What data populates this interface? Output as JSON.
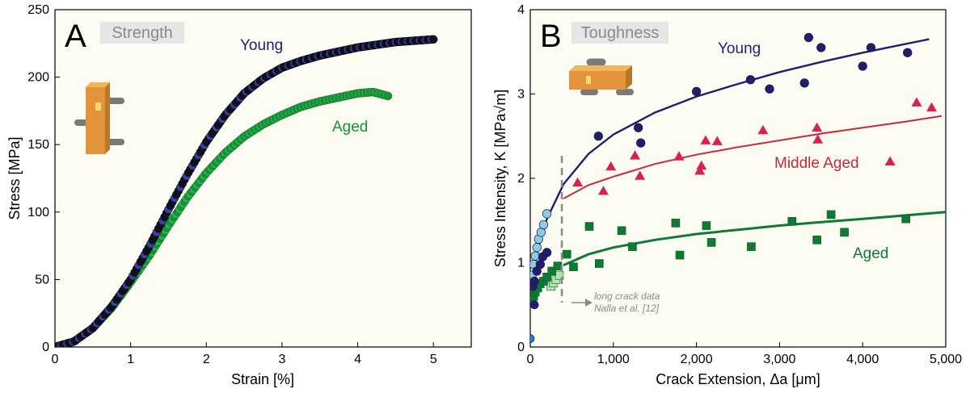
{
  "chart_data": [
    {
      "panel": "A",
      "title": "Strength",
      "type": "scatter",
      "xlabel": "Strain [%]",
      "ylabel": "Stress [MPa]",
      "xlim": [
        0,
        5.5
      ],
      "ylim": [
        0,
        250
      ],
      "xticks": [
        "0",
        "1",
        "2",
        "3",
        "4",
        "5"
      ],
      "xtick_values": [
        0,
        1,
        2,
        3,
        4,
        5
      ],
      "yticks": [
        "0",
        "50",
        "100",
        "150",
        "200",
        "250"
      ],
      "ytick_values": [
        0,
        50,
        100,
        150,
        200,
        250
      ],
      "grid": false,
      "series": [
        {
          "name": "Young",
          "color": "#1f1f6e",
          "points": [
            [
              0,
              0
            ],
            [
              0.25,
              4
            ],
            [
              0.5,
              14
            ],
            [
              0.75,
              30
            ],
            [
              1.0,
              50
            ],
            [
              1.25,
              75
            ],
            [
              1.5,
              102
            ],
            [
              1.75,
              128
            ],
            [
              2.0,
              152
            ],
            [
              2.25,
              172
            ],
            [
              2.5,
              188
            ],
            [
              2.75,
              199
            ],
            [
              3.0,
              207
            ],
            [
              3.25,
              212
            ],
            [
              3.5,
              216
            ],
            [
              3.75,
              219
            ],
            [
              4.0,
              222
            ],
            [
              4.25,
              224
            ],
            [
              4.5,
              226
            ],
            [
              4.75,
              227
            ],
            [
              5.0,
              228
            ]
          ]
        },
        {
          "name": "Aged",
          "color": "#139436",
          "points": [
            [
              0,
              0
            ],
            [
              0.25,
              4
            ],
            [
              0.5,
              14
            ],
            [
              0.75,
              29
            ],
            [
              1.0,
              48
            ],
            [
              1.25,
              68
            ],
            [
              1.5,
              90
            ],
            [
              1.75,
              111
            ],
            [
              2.0,
              129
            ],
            [
              2.25,
              144
            ],
            [
              2.5,
              156
            ],
            [
              2.75,
              165
            ],
            [
              3.0,
              172
            ],
            [
              3.25,
              178
            ],
            [
              3.5,
              182
            ],
            [
              3.75,
              185
            ],
            [
              4.0,
              188
            ],
            [
              4.2,
              189
            ],
            [
              4.4,
              186
            ]
          ]
        }
      ]
    },
    {
      "panel": "B",
      "title": "Toughness",
      "type": "scatter",
      "xlabel": "Crack Extension, Δa [μm]",
      "ylabel": "Stress Intensity, K [MPa√m]",
      "xlim": [
        0,
        5000
      ],
      "ylim": [
        0,
        4
      ],
      "xticks": [
        "0",
        "1,000",
        "2,000",
        "3,000",
        "4,000",
        "5,000"
      ],
      "xtick_values": [
        0,
        1000,
        2000,
        3000,
        4000,
        5000
      ],
      "yticks": [
        "0",
        "1",
        "2",
        "3",
        "4"
      ],
      "ytick_values": [
        0,
        1,
        2,
        3,
        4
      ],
      "grid": false,
      "annotation": {
        "text_line1": "long crack data",
        "text_line2": "Nalla et al. [12]",
        "x": 380
      },
      "series": [
        {
          "name": "Young",
          "color": "#1f1f6e",
          "marker": "circle",
          "fit_points": [
            [
              20,
              0.82
            ],
            [
              100,
              1.19
            ],
            [
              200,
              1.52
            ],
            [
              400,
              1.93
            ],
            [
              700,
              2.29
            ],
            [
              1000,
              2.52
            ],
            [
              1500,
              2.78
            ],
            [
              2000,
              2.97
            ],
            [
              2500,
              3.12
            ],
            [
              3000,
              3.26
            ],
            [
              3500,
              3.38
            ],
            [
              4000,
              3.49
            ],
            [
              4500,
              3.59
            ],
            [
              4800,
              3.65
            ]
          ],
          "points": [
            [
              30,
              0.72
            ],
            [
              50,
              0.78
            ],
            [
              80,
              0.9
            ],
            [
              120,
              0.98
            ],
            [
              150,
              1.07
            ],
            [
              200,
              1.12
            ],
            [
              820,
              2.5
            ],
            [
              1300,
              2.6
            ],
            [
              1330,
              2.42
            ],
            [
              2000,
              3.03
            ],
            [
              2650,
              3.17
            ],
            [
              2880,
              3.06
            ],
            [
              3300,
              3.13
            ],
            [
              3350,
              3.67
            ],
            [
              3500,
              3.55
            ],
            [
              4000,
              3.33
            ],
            [
              4100,
              3.55
            ],
            [
              4540,
              3.49
            ]
          ]
        },
        {
          "name": "Young",
          "color": "#8dcbe8",
          "marker": "circle",
          "points": [
            [
              20,
              0.85
            ],
            [
              40,
              0.98
            ],
            [
              60,
              1.08
            ],
            [
              80,
              1.18
            ],
            [
              100,
              1.28
            ],
            [
              130,
              1.36
            ],
            [
              160,
              1.45
            ],
            [
              200,
              1.58
            ]
          ]
        },
        {
          "name": "Middle Aged",
          "color": "#d91f56",
          "marker": "triangle",
          "fit_points": [
            [
              400,
              1.76
            ],
            [
              700,
              1.92
            ],
            [
              1000,
              2.02
            ],
            [
              1500,
              2.17
            ],
            [
              2000,
              2.28
            ],
            [
              2500,
              2.37
            ],
            [
              3000,
              2.45
            ],
            [
              3500,
              2.53
            ],
            [
              4000,
              2.6
            ],
            [
              4500,
              2.67
            ],
            [
              4950,
              2.74
            ]
          ],
          "points": [
            [
              570,
              1.95
            ],
            [
              880,
              1.85
            ],
            [
              970,
              2.14
            ],
            [
              1260,
              2.27
            ],
            [
              1320,
              2.03
            ],
            [
              1790,
              2.26
            ],
            [
              2040,
              2.09
            ],
            [
              2060,
              2.15
            ],
            [
              2110,
              2.45
            ],
            [
              2250,
              2.44
            ],
            [
              2800,
              2.57
            ],
            [
              3450,
              2.6
            ],
            [
              3460,
              2.46
            ],
            [
              4330,
              2.2
            ],
            [
              4650,
              2.9
            ],
            [
              4830,
              2.84
            ]
          ]
        },
        {
          "name": "Aged",
          "color": "#0e7a33",
          "marker": "square",
          "fit_points": [
            [
              400,
              0.97
            ],
            [
              700,
              1.1
            ],
            [
              1000,
              1.18
            ],
            [
              1500,
              1.27
            ],
            [
              2000,
              1.34
            ],
            [
              2500,
              1.39
            ],
            [
              3000,
              1.44
            ],
            [
              3500,
              1.48
            ],
            [
              4000,
              1.52
            ],
            [
              4500,
              1.56
            ],
            [
              5000,
              1.6
            ]
          ],
          "points": [
            [
              20,
              0.52
            ],
            [
              40,
              0.6
            ],
            [
              60,
              0.65
            ],
            [
              90,
              0.7
            ],
            [
              120,
              0.75
            ],
            [
              160,
              0.78
            ],
            [
              200,
              0.83
            ],
            [
              260,
              0.9
            ],
            [
              330,
              0.96
            ],
            [
              440,
              1.1
            ],
            [
              520,
              0.95
            ],
            [
              710,
              1.43
            ],
            [
              830,
              0.99
            ],
            [
              1100,
              1.38
            ],
            [
              1230,
              1.19
            ],
            [
              1750,
              1.47
            ],
            [
              1800,
              1.09
            ],
            [
              2120,
              1.44
            ],
            [
              2180,
              1.24
            ],
            [
              2660,
              1.19
            ],
            [
              3150,
              1.49
            ],
            [
              3450,
              1.27
            ],
            [
              3620,
              1.57
            ],
            [
              3780,
              1.36
            ],
            [
              4520,
              1.52
            ]
          ]
        },
        {
          "name": "Aged",
          "color": "#b7e3b0",
          "marker": "square",
          "points": [
            [
              250,
              0.72
            ],
            [
              280,
              0.76
            ],
            [
              310,
              0.8
            ],
            [
              350,
              0.85
            ]
          ]
        }
      ]
    }
  ]
}
